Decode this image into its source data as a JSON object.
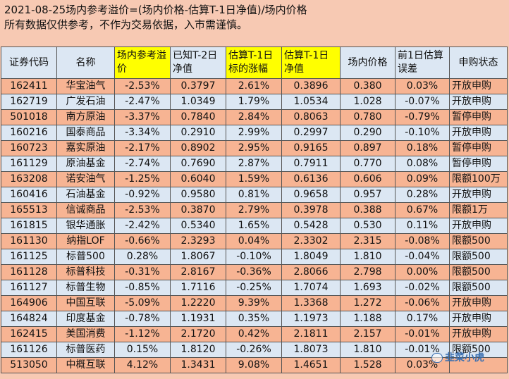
{
  "header": {
    "line1": "2021-08-25场内参考溢价=(场内价格-估算T-1日净值)/场内价格",
    "line2": "所有数据仅供参考，不作为交易依据，入市需谨慎。"
  },
  "columns": [
    "证券代码",
    "名称",
    "场内参考溢价",
    "已知T-2日净值",
    "估算T-1日标的涨幅",
    "估算T-1日净值",
    "场内价格",
    "前1日估算误差",
    "申购状态"
  ],
  "highlight_color": "#ffff00",
  "row_colors": [
    "#f7b493",
    "#dce7f3"
  ],
  "rows": [
    [
      "162411",
      "华宝油气",
      "-2.53%",
      "0.3797",
      "2.61%",
      "0.3896",
      "0.380",
      "0.03%",
      "开放申购"
    ],
    [
      "162719",
      "广发石油",
      "-2.47%",
      "1.0349",
      "1.79%",
      "1.0534",
      "1.028",
      "-0.07%",
      "开放申购"
    ],
    [
      "501018",
      "南方原油",
      "-3.37%",
      "0.7840",
      "2.84%",
      "0.8063",
      "0.780",
      "-0.79%",
      "暂停申购"
    ],
    [
      "160216",
      "国泰商品",
      "-3.34%",
      "0.2910",
      "2.99%",
      "0.2997",
      "0.290",
      "-0.10%",
      "开放申购"
    ],
    [
      "160723",
      "嘉实原油",
      "-2.17%",
      "0.8902",
      "2.95%",
      "0.9165",
      "0.897",
      "0.18%",
      "暂停申购"
    ],
    [
      "161129",
      "原油基金",
      "-2.74%",
      "0.7690",
      "2.87%",
      "0.7911",
      "0.770",
      "0.08%",
      "暂停申购"
    ],
    [
      "163208",
      "诺安油气",
      "-1.25%",
      "0.6040",
      "1.59%",
      "0.6136",
      "0.606",
      "0.09%",
      "限额100万"
    ],
    [
      "160416",
      "石油基金",
      "-0.92%",
      "0.9580",
      "0.81%",
      "0.9658",
      "0.957",
      "0.28%",
      "开放申购"
    ],
    [
      "165513",
      "信诚商品",
      "-2.53%",
      "0.3870",
      "2.79%",
      "0.3978",
      "0.388",
      "0.67%",
      "限额1万"
    ],
    [
      "161815",
      "银华通胀",
      "-2.42%",
      "0.5340",
      "1.65%",
      "0.5428",
      "0.530",
      "0.11%",
      "开放申购"
    ],
    [
      "161130",
      "纳指LOF",
      "-0.66%",
      "2.3293",
      "0.04%",
      "2.3302",
      "2.315",
      "-0.08%",
      "限额500"
    ],
    [
      "161125",
      "标普500",
      "0.28%",
      "1.8067",
      "-0.10%",
      "1.8049",
      "1.810",
      "-0.04%",
      "限额500"
    ],
    [
      "161128",
      "标普科技",
      "-0.31%",
      "2.8167",
      "-0.36%",
      "2.8066",
      "2.798",
      "0.00%",
      "限额500"
    ],
    [
      "161127",
      "标普生物",
      "-0.85%",
      "1.7116",
      "-0.25%",
      "1.7074",
      "1.693",
      "-0.02%",
      "限额500"
    ],
    [
      "164906",
      "中国互联",
      "-5.09%",
      "1.2220",
      "9.39%",
      "1.3368",
      "1.272",
      "-0.06%",
      "开放申购"
    ],
    [
      "164824",
      "印度基金",
      "-0.78%",
      "1.1931",
      "0.35%",
      "1.1973",
      "1.188",
      "0.17%",
      "开放申购"
    ],
    [
      "162415",
      "美国消费",
      "-1.12%",
      "2.1720",
      "0.42%",
      "2.1811",
      "2.157",
      "-0.01%",
      "开放申购"
    ],
    [
      "161126",
      "标普医药",
      "0.15%",
      "1.8120",
      "-0.26%",
      "1.8073",
      "1.810",
      "-0.01%",
      "限额500"
    ],
    [
      "513050",
      "中概互联",
      "4.12%",
      "1.3431",
      "9.08%",
      "1.4651",
      "1.528",
      "0.03%",
      ""
    ]
  ],
  "watermark": "韭菜小虎"
}
